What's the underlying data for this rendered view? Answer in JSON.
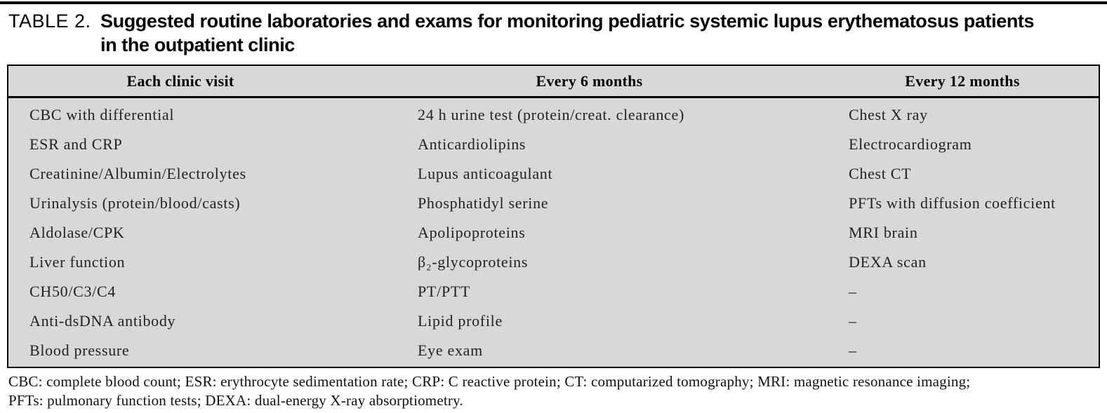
{
  "title": {
    "label": "TABLE 2.",
    "line1": "Suggested routine laboratories and exams for monitoring pediatric systemic lupus erythematosus patients",
    "line2": "in the outpatient clinic"
  },
  "table": {
    "columns": [
      "Each clinic visit",
      "Every 6 months",
      "Every 12 months"
    ],
    "rows": [
      [
        "CBC with differential",
        "24 h urine test (protein/creat. clearance)",
        "Chest X ray"
      ],
      [
        "ESR and CRP",
        "Anticardiolipins",
        "Electrocardiogram"
      ],
      [
        "Creatinine/Albumin/Electrolytes",
        "Lupus anticoagulant",
        "Chest CT"
      ],
      [
        "Urinalysis (protein/blood/casts)",
        "Phosphatidyl serine",
        "PFTs with diffusion coefficient"
      ],
      [
        "Aldolase/CPK",
        "Apolipoproteins",
        "MRI brain"
      ],
      [
        "Liver function",
        "β₂-glycoproteins",
        "DEXA scan"
      ],
      [
        "CH50/C3/C4",
        "PT/PTT",
        "–"
      ],
      [
        "Anti-dsDNA antibody",
        "Lipid profile",
        "–"
      ],
      [
        "Blood pressure",
        "Eye exam",
        "–"
      ]
    ]
  },
  "footnote": {
    "line1": "CBC: complete blood count; ESR: erythrocyte sedimentation rate; CRP: C reactive protein; CT: computarized tomography; MRI: magnetic resonance imaging;",
    "line2": "PFTs: pulmonary function tests; DEXA: dual-energy X-ray absorptiometry."
  },
  "colors": {
    "table_bg": "#d8d8d8",
    "border": "#000000",
    "text": "#222222"
  }
}
